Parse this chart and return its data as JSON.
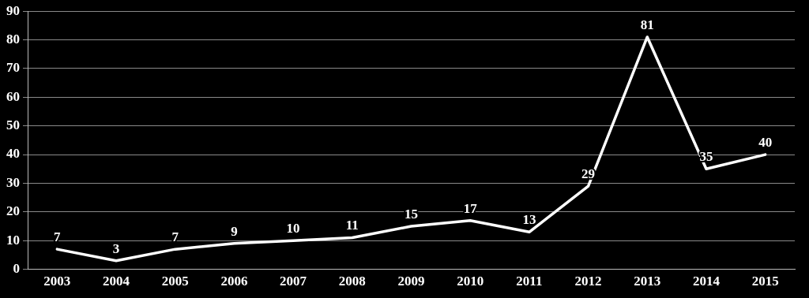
{
  "chart_data": {
    "type": "line",
    "categories": [
      "2003",
      "2004",
      "2005",
      "2006",
      "2007",
      "2008",
      "2009",
      "2010",
      "2011",
      "2012",
      "2013",
      "2014",
      "2015"
    ],
    "series": [
      {
        "color": "#ffffff",
        "values": [
          7,
          3,
          7,
          9,
          10,
          11,
          15,
          17,
          13,
          29,
          81,
          35,
          40
        ]
      }
    ],
    "ylim": [
      0,
      90
    ],
    "yticks": [
      0,
      10,
      20,
      30,
      40,
      50,
      60,
      70,
      80,
      90
    ],
    "grid": "y",
    "legend": false,
    "marker": "none",
    "line_style": "solid",
    "data_labels": true
  }
}
